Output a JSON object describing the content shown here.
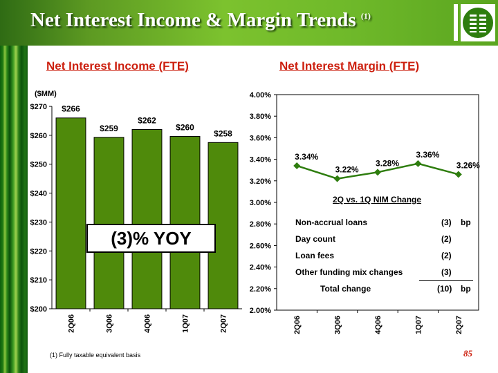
{
  "header": {
    "title": "Net Interest Income & Margin Trends",
    "title_superscript": "(1)",
    "logo": "bank-logo"
  },
  "chart_data": [
    {
      "type": "bar",
      "title": "Net Interest Income (FTE)",
      "ylabel": "($MM)",
      "categories": [
        "2Q06",
        "3Q06",
        "4Q06",
        "1Q07",
        "2Q07"
      ],
      "values": [
        266,
        259.3,
        262,
        259.6,
        257.5
      ],
      "data_labels": [
        "$266",
        "$259",
        "$262",
        "$260",
        "$258"
      ],
      "ylim": [
        200,
        270
      ],
      "yticks": [
        200,
        210,
        220,
        230,
        240,
        250,
        260,
        270
      ],
      "ytick_labels": [
        "$200",
        "$210",
        "$220",
        "$230",
        "$240",
        "$250",
        "$260",
        "$270"
      ],
      "bar_color": "#4f8a0b",
      "callout": "(3)% YOY"
    },
    {
      "type": "line",
      "title": "Net Interest Margin (FTE)",
      "categories": [
        "2Q06",
        "3Q06",
        "4Q06",
        "1Q07",
        "2Q07"
      ],
      "values": [
        3.34,
        3.22,
        3.28,
        3.36,
        3.26
      ],
      "data_labels": [
        "3.34%",
        "3.22%",
        "3.28%",
        "3.36%",
        "3.26%"
      ],
      "ylim": [
        2.0,
        4.0
      ],
      "yticks": [
        2.0,
        2.2,
        2.4,
        2.6,
        2.8,
        3.0,
        3.2,
        3.4,
        3.6,
        3.8,
        4.0
      ],
      "ytick_labels": [
        "2.00%",
        "2.20%",
        "2.40%",
        "2.60%",
        "2.80%",
        "3.00%",
        "3.20%",
        "3.40%",
        "3.60%",
        "3.80%",
        "4.00%"
      ],
      "line_color": "#2e7d0e"
    }
  ],
  "nim_change": {
    "heading": "2Q vs. 1Q NIM Change",
    "rows": [
      {
        "label": "Non-accrual loans",
        "value": "(3)",
        "unit": "bp"
      },
      {
        "label": "Day count",
        "value": "(2)",
        "unit": ""
      },
      {
        "label": "Loan fees",
        "value": "(2)",
        "unit": ""
      },
      {
        "label": "Other funding mix changes",
        "value": "(3)",
        "unit": ""
      },
      {
        "label": "Total change",
        "value": "(10)",
        "unit": "bp"
      }
    ]
  },
  "footnote": "(1)  Fully taxable equivalent basis",
  "page_number": "85"
}
